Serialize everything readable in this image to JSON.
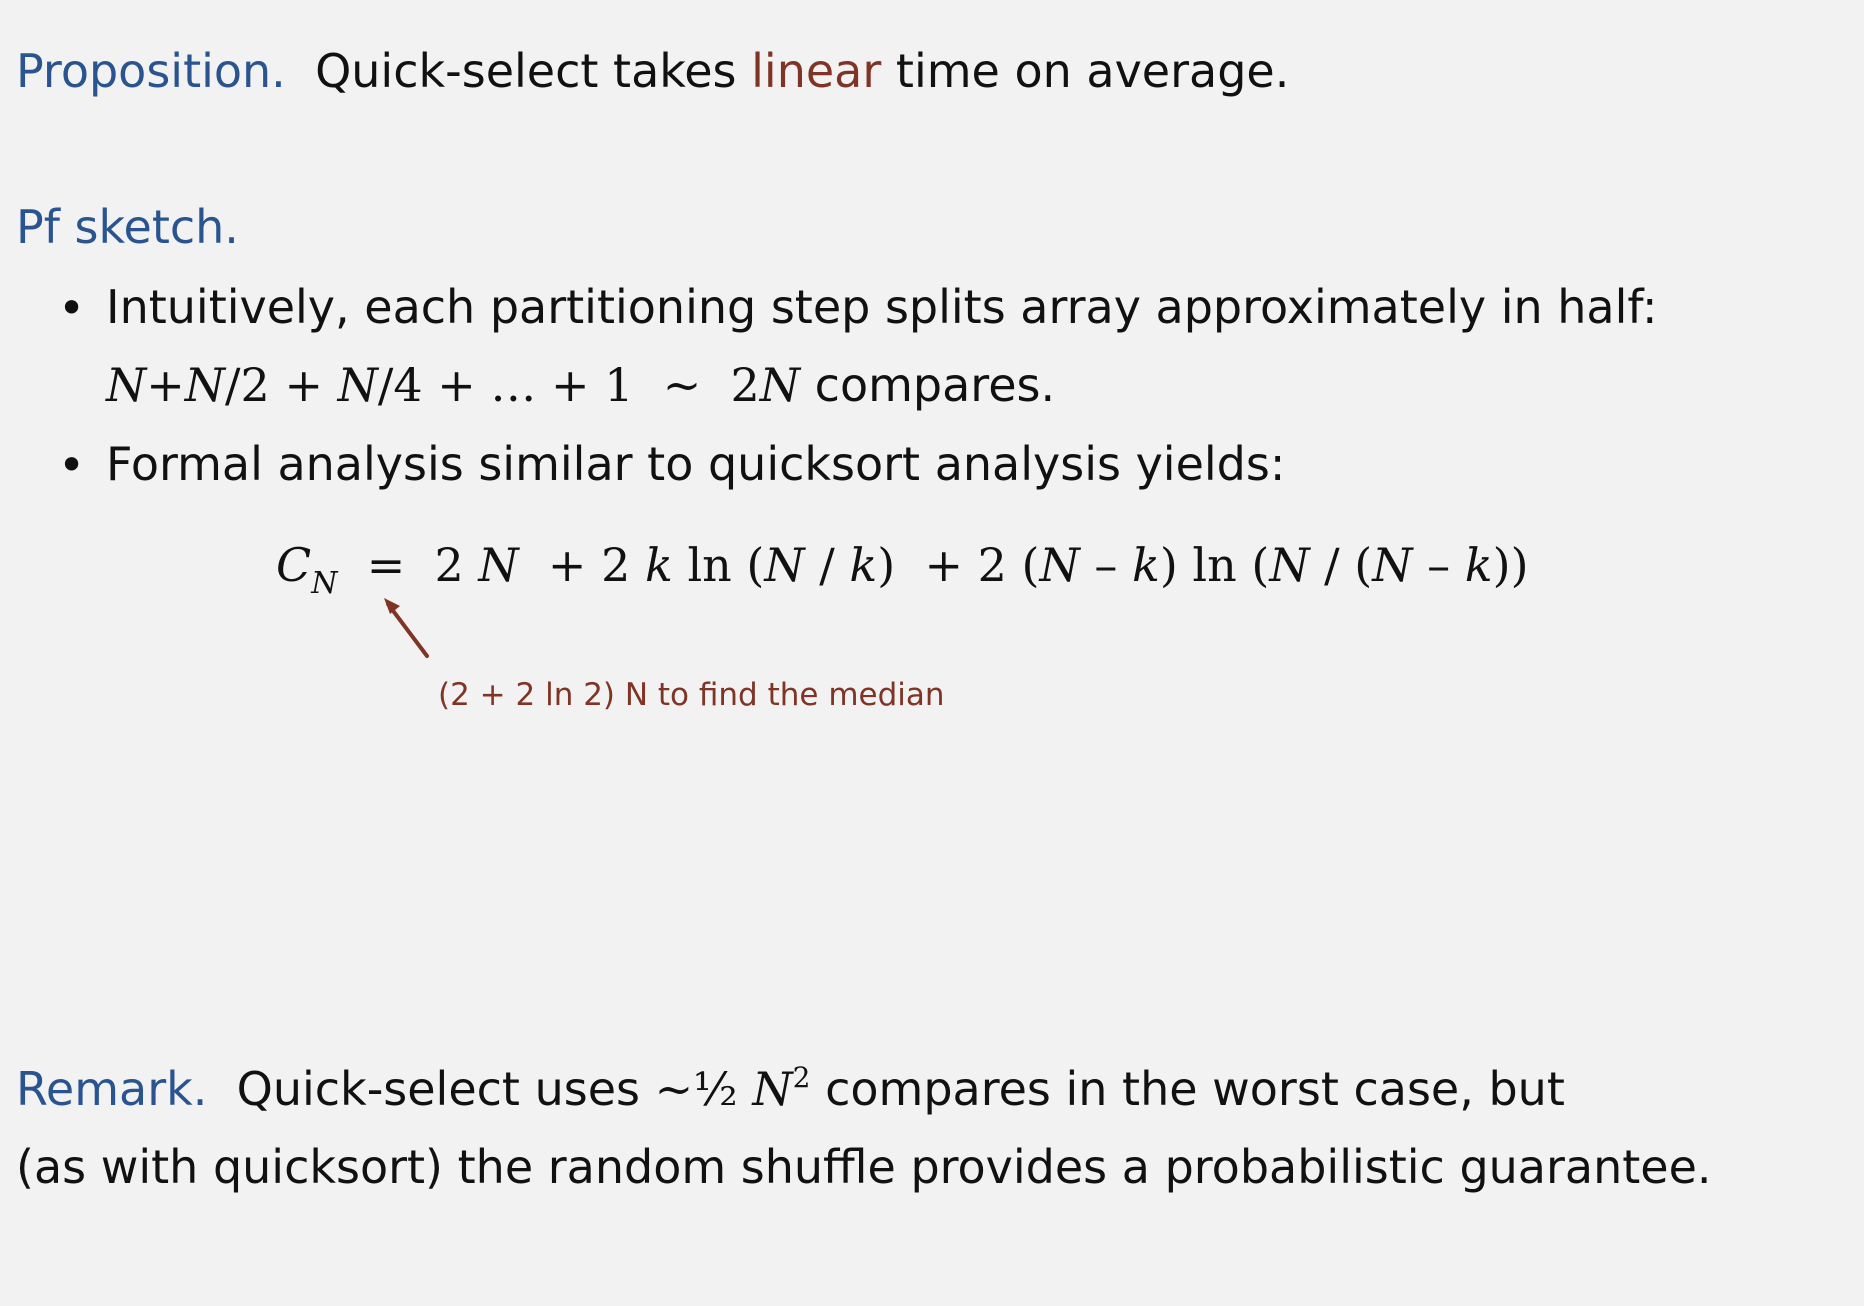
{
  "proposition": {
    "label": "Proposition.",
    "text_before": "Quick-select takes",
    "highlight": "linear",
    "text_after": "time on average."
  },
  "proof": {
    "label": "Pf sketch.",
    "bullet1": "Intuitively, each partitioning step splits array approximately in half:",
    "bullet1_formula": {
      "n1": "N",
      "p1": "+",
      "n2": "N",
      "d2": "/2",
      "p2": "+",
      "n3": "N",
      "d3": "/4",
      "p3": "+ … + 1",
      "tilde": "~",
      "rhs_coef": "2",
      "rhs_var": "N",
      "suffix": "compares."
    },
    "bullet2": "Formal analysis similar to quicksort analysis yields:"
  },
  "equation": {
    "lhs": "C",
    "lhs_sub": "N",
    "eq": "=",
    "t1_coef": "2",
    "t1_var": "N",
    "t2_prefix": "+ 2",
    "t2_k": "k",
    "t2_ln": "ln (",
    "t2_N": "N",
    "t2_slash": " / ",
    "t2_k2": "k",
    "t2_close": ")",
    "t3_prefix": "+ 2 (",
    "t3_N": "N",
    "t3_minus": " – ",
    "t3_k": "k",
    "t3_ln": ") ln (",
    "t3_N2": "N",
    "t3_slash": " / (",
    "t3_N3": "N",
    "t3_minus2": " – ",
    "t3_k2": "k",
    "t3_close": "))"
  },
  "annotation": {
    "text": "(2 + 2 ln 2) N  to find the median"
  },
  "remark": {
    "label": "Remark.",
    "text_before": "Quick-select uses",
    "tilde": "~",
    "half": "½",
    "var": "N",
    "exp": "2",
    "text_after": "compares in the worst case, but",
    "line2": "(as with quicksort) the random shuffle provides a probabilistic guarantee."
  },
  "colors": {
    "label_blue": "#2a5490",
    "accent_red": "#7f3425",
    "background": "#f2f2f2",
    "text": "#111111"
  }
}
